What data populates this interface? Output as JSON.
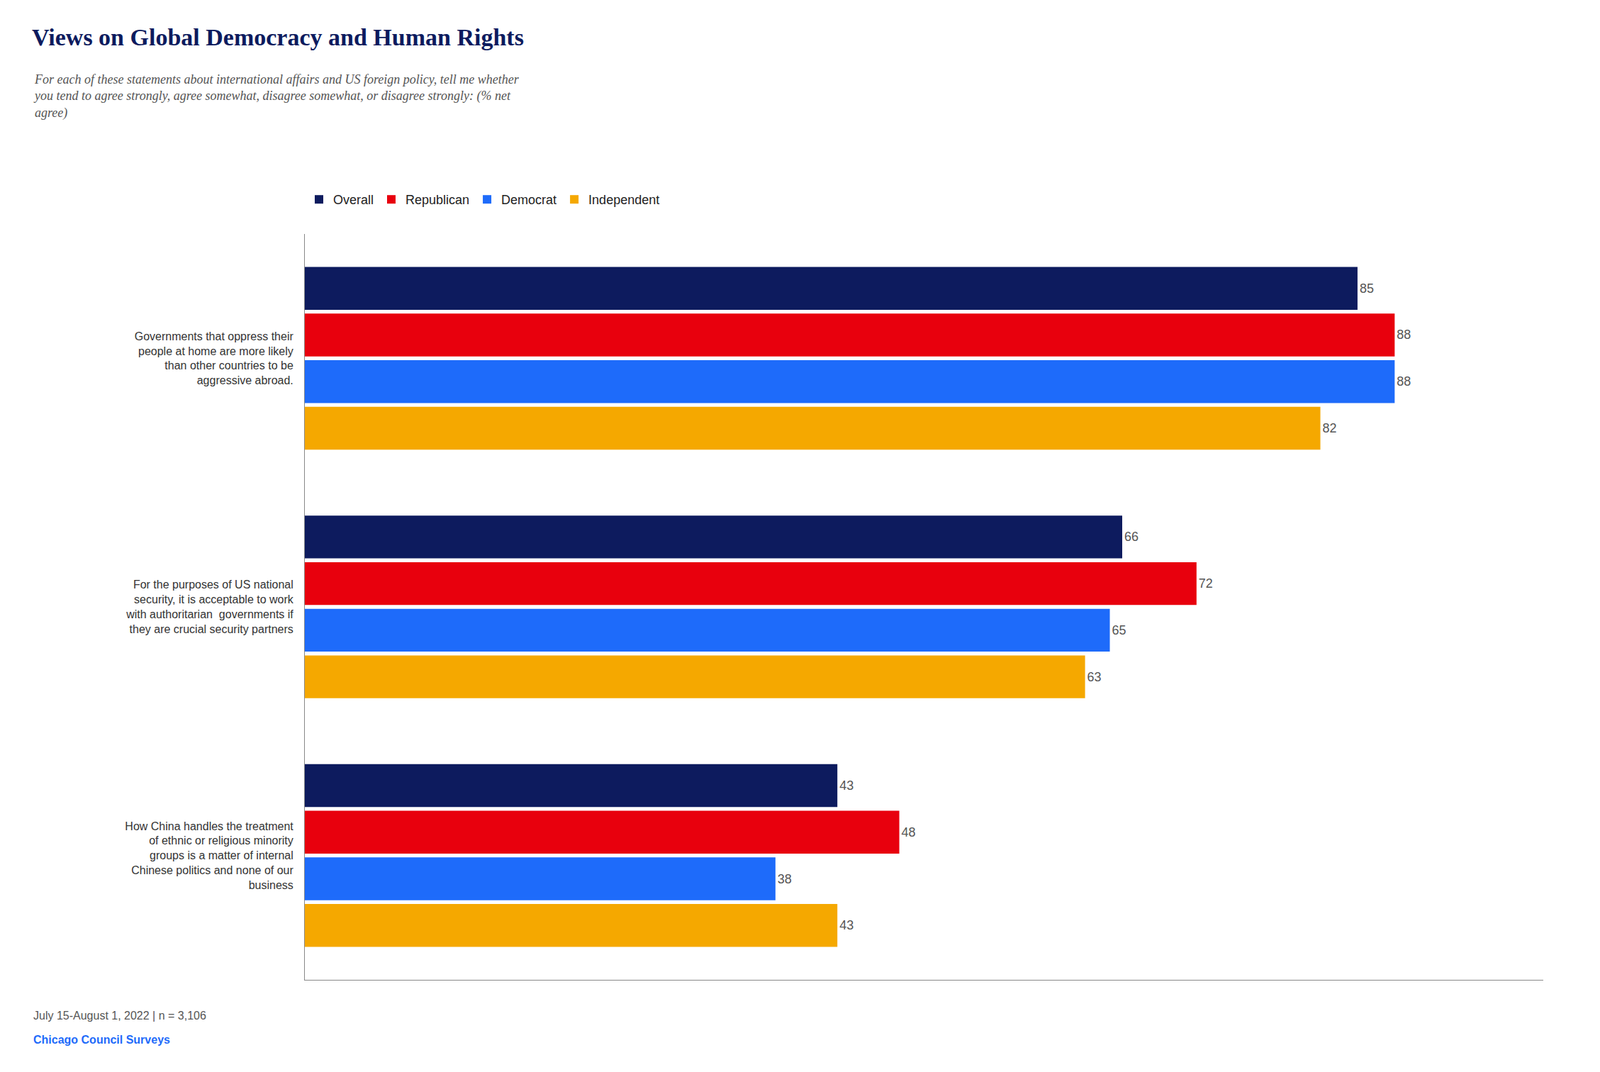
{
  "chart_data": {
    "type": "bar",
    "orientation": "horizontal",
    "title": "Views on Global Democracy and Human Rights",
    "subtitle": "For each of these statements about international affairs and US foreign policy, tell me whether\nyou tend to agree strongly, agree somewhat, disagree somewhat, or disagree strongly: (% net\nagree)",
    "annotations": [
      "July 15-August 1, 2022 | n = 3,106",
      "Chicago Council Surveys"
    ],
    "categories": [
      "Governments that oppress their\npeople at home are more likely\nthan other countries to be\naggressive abroad.",
      "For the purposes of US national\nsecurity, it is acceptable to work\nwith authoritarian  governments if\nthey are crucial security partners",
      "How China handles the treatment\nof ethnic or religious minority\ngroups is a matter of internal\nChinese politics and none of our\nbusiness"
    ],
    "series": [
      {
        "name": "Overall",
        "color": "#0d1b5e",
        "values": [
          85,
          66,
          43
        ]
      },
      {
        "name": "Republican",
        "color": "#e8000d",
        "values": [
          88,
          72,
          48
        ]
      },
      {
        "name": "Democrat",
        "color": "#1e6bfa",
        "values": [
          88,
          65,
          38
        ]
      },
      {
        "name": "Independent",
        "color": "#f5a800",
        "values": [
          82,
          63,
          43
        ]
      }
    ],
    "xlim": [
      0,
      100
    ],
    "tick_labels": "y",
    "data_labels": true,
    "legend": "top",
    "grid": false
  }
}
